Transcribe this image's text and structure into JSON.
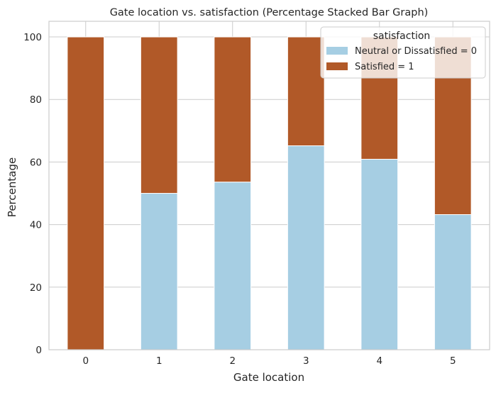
{
  "chart_data": {
    "type": "bar",
    "stacked": true,
    "title": "Gate location vs. satisfaction (Percentage Stacked Bar Graph)",
    "xlabel": "Gate location",
    "ylabel": "Percentage",
    "categories": [
      "0",
      "1",
      "2",
      "3",
      "4",
      "5"
    ],
    "ylim": [
      0,
      105
    ],
    "yticks": [
      0,
      20,
      40,
      60,
      80,
      100
    ],
    "grid": true,
    "legend": {
      "title": "satisfaction",
      "placement": "top-right"
    },
    "series": [
      {
        "name": "Neutral or Dissatisfied = 0",
        "color": "#a6cee3",
        "values": [
          0,
          50.0,
          53.6,
          65.2,
          60.9,
          43.2
        ]
      },
      {
        "name": "Satisfied = 1",
        "color": "#b15928",
        "values": [
          100,
          50.0,
          46.4,
          34.8,
          39.1,
          56.8
        ]
      }
    ]
  }
}
